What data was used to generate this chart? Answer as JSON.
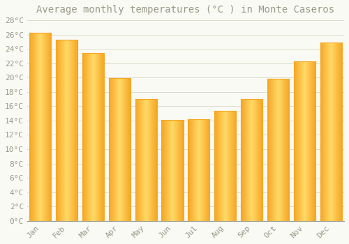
{
  "title": "Average monthly temperatures (°C ) in Monte Caseros",
  "months": [
    "Jan",
    "Feb",
    "Mar",
    "Apr",
    "May",
    "Jun",
    "Jul",
    "Aug",
    "Sep",
    "Oct",
    "Nov",
    "Dec"
  ],
  "values": [
    26.3,
    25.3,
    23.4,
    19.9,
    17.0,
    14.1,
    14.2,
    15.4,
    17.0,
    19.8,
    22.3,
    24.9
  ],
  "bar_color_center": "#FFD966",
  "bar_color_edge": "#F5A623",
  "background_color": "#FAFAF5",
  "grid_color": "#DDDDCC",
  "text_color": "#999988",
  "ylim": [
    0,
    28
  ],
  "ytick_step": 2,
  "title_fontsize": 10,
  "tick_fontsize": 8
}
